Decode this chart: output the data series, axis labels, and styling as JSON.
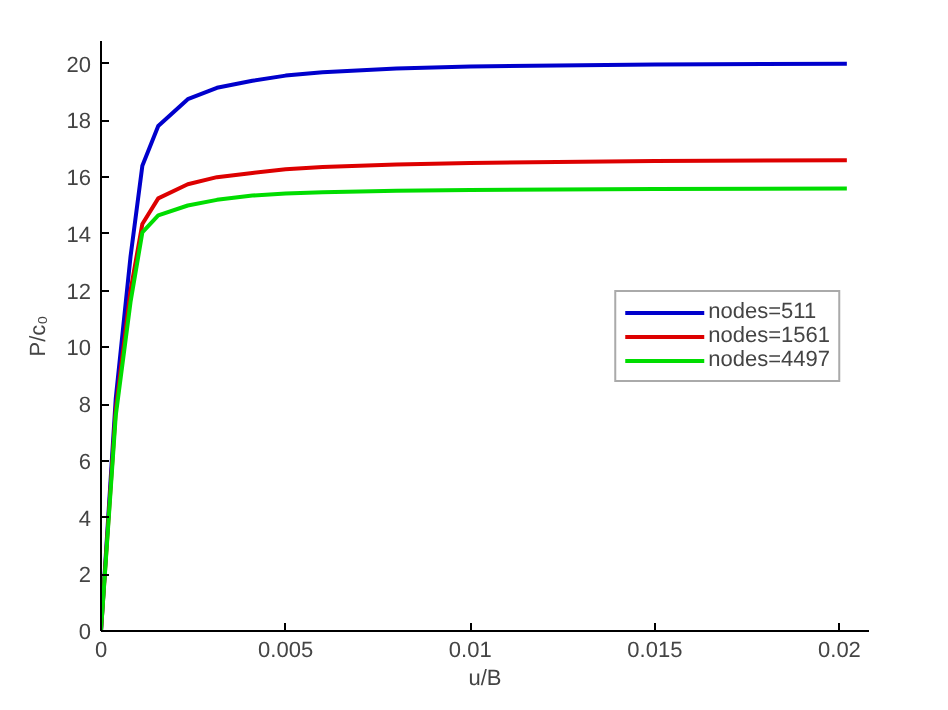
{
  "chart_data": {
    "type": "line",
    "xlabel": "u/B",
    "ylabel": "P/c₀",
    "xlim": [
      0,
      0.0208
    ],
    "ylim": [
      0,
      20.8
    ],
    "xticks": [
      0,
      0.005,
      0.01,
      0.015,
      0.02
    ],
    "yticks": [
      0,
      2,
      4,
      6,
      8,
      10,
      12,
      14,
      16,
      18,
      20
    ],
    "grid": false,
    "legend": "right",
    "marker": "none",
    "line_style": "solid",
    "series": [
      {
        "name": "nodes=511",
        "color": "#0000cc",
        "x": [
          0,
          0.0004,
          0.0008,
          0.00112,
          0.00155,
          0.00235,
          0.00314,
          0.0041,
          0.005,
          0.006,
          0.008,
          0.01,
          0.015,
          0.0202
        ],
        "values": [
          0,
          8.2,
          13.2,
          16.4,
          17.8,
          18.75,
          19.15,
          19.4,
          19.58,
          19.7,
          19.83,
          19.9,
          19.97,
          20.0
        ]
      },
      {
        "name": "nodes=1561",
        "color": "#dd0000",
        "x": [
          0,
          0.0004,
          0.0008,
          0.00112,
          0.00155,
          0.00235,
          0.00314,
          0.0041,
          0.005,
          0.006,
          0.008,
          0.01,
          0.015,
          0.0202
        ],
        "values": [
          0,
          7.8,
          12.0,
          14.35,
          15.25,
          15.75,
          16.0,
          16.15,
          16.28,
          16.36,
          16.45,
          16.5,
          16.57,
          16.6
        ]
      },
      {
        "name": "nodes=4497",
        "color": "#00dd00",
        "x": [
          0,
          0.0004,
          0.0008,
          0.00112,
          0.00155,
          0.00235,
          0.00314,
          0.0041,
          0.005,
          0.006,
          0.008,
          0.01,
          0.015,
          0.0202
        ],
        "values": [
          0,
          7.6,
          11.6,
          14.05,
          14.65,
          15.0,
          15.2,
          15.35,
          15.42,
          15.47,
          15.52,
          15.55,
          15.58,
          15.6
        ]
      }
    ]
  }
}
